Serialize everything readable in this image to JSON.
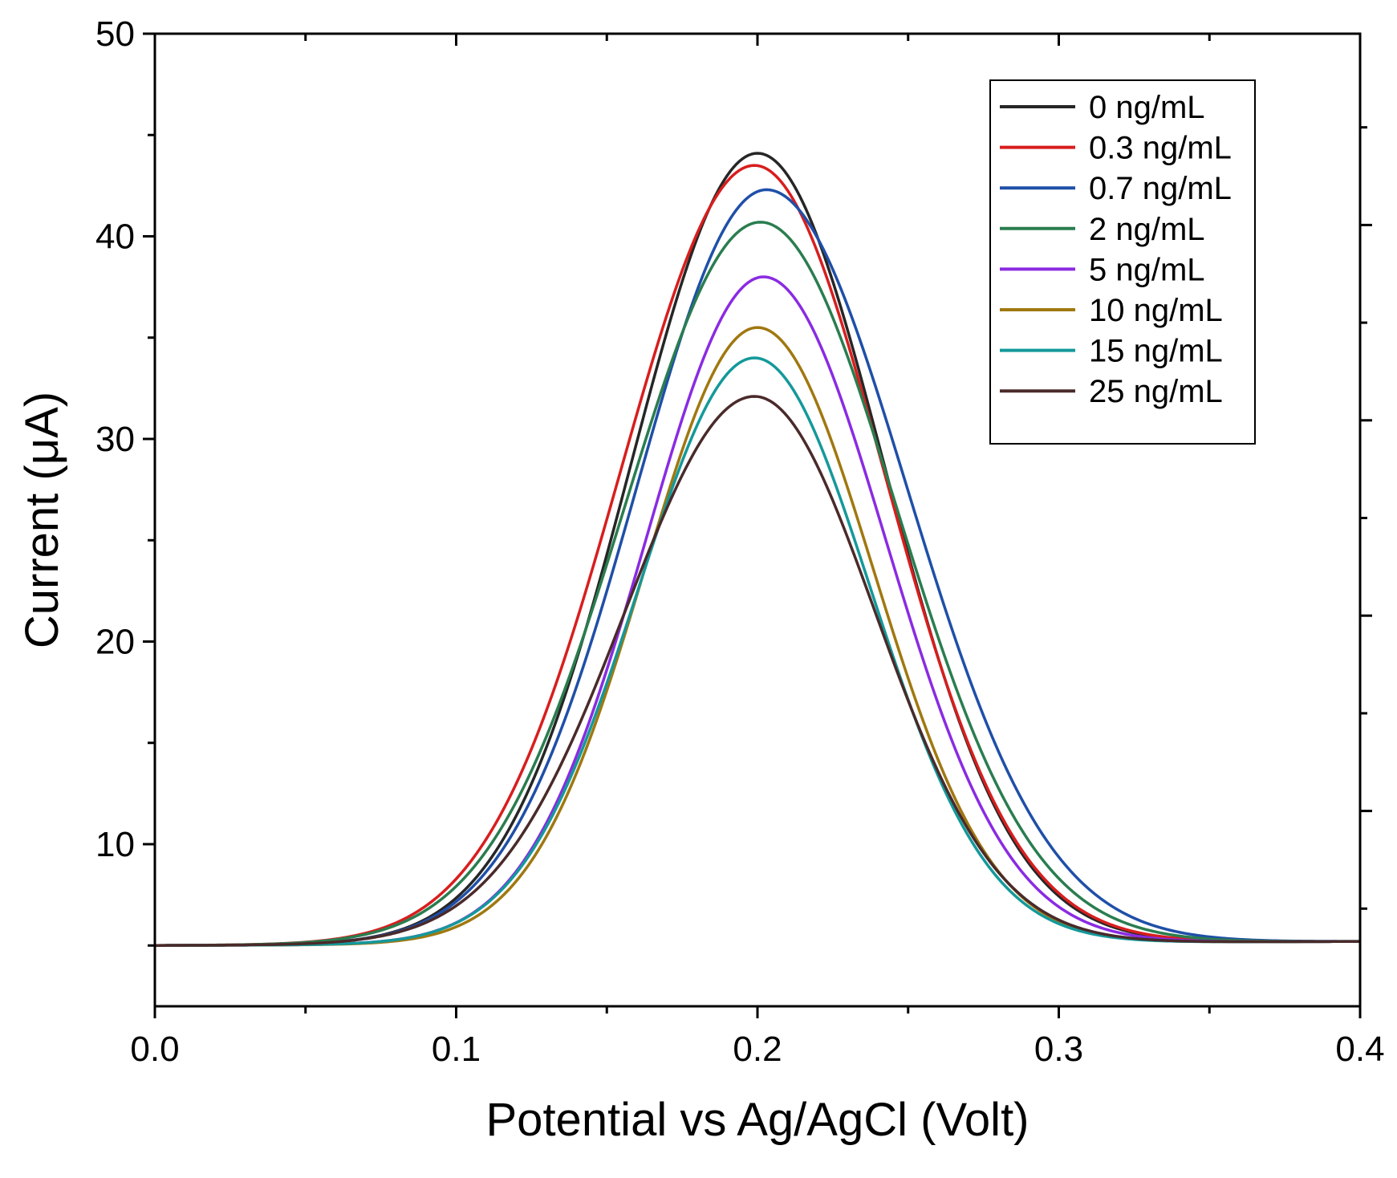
{
  "chart_data": {
    "type": "line",
    "title": "",
    "xlabel": "Potential vs Ag/AgCl (Volt)",
    "ylabel": "Current (μA)",
    "xlim": [
      0.0,
      0.4
    ],
    "ylim": [
      2,
      50
    ],
    "x_ticks": [
      0.0,
      0.1,
      0.2,
      0.3,
      0.4
    ],
    "x_tick_labels": [
      "0.0",
      "0.1",
      "0.2",
      "0.3",
      "0.4"
    ],
    "y_ticks": [
      10,
      20,
      30,
      40,
      50
    ],
    "y_tick_labels": [
      "10",
      "20",
      "30",
      "40",
      "50"
    ],
    "x_minor_step": 0.05,
    "y_minor_step": 5,
    "grid": false,
    "legend_position": "top-right",
    "baseline_start": 5.0,
    "baseline_end": 5.2,
    "series": [
      {
        "name": "0 ng/mL",
        "color": "#262626",
        "peak_x": 0.2,
        "peak_y": 44.1,
        "sigma_left": 0.042,
        "sigma_right": 0.042
      },
      {
        "name": "0.3 ng/mL",
        "color": "#d81e1e",
        "peak_x": 0.199,
        "peak_y": 43.5,
        "sigma_left": 0.0445,
        "sigma_right": 0.043
      },
      {
        "name": "0.7 ng/mL",
        "color": "#1f4fa8",
        "peak_x": 0.203,
        "peak_y": 42.3,
        "sigma_left": 0.043,
        "sigma_right": 0.0465
      },
      {
        "name": "2 ng/mL",
        "color": "#2a7d4f",
        "peak_x": 0.201,
        "peak_y": 40.7,
        "sigma_left": 0.045,
        "sigma_right": 0.045
      },
      {
        "name": "5 ng/mL",
        "color": "#8a2be2",
        "peak_x": 0.202,
        "peak_y": 38.0,
        "sigma_left": 0.039,
        "sigma_right": 0.0405
      },
      {
        "name": "10 ng/mL",
        "color": "#a07810",
        "peak_x": 0.2,
        "peak_y": 35.5,
        "sigma_left": 0.0375,
        "sigma_right": 0.0385
      },
      {
        "name": "15 ng/mL",
        "color": "#14999a",
        "peak_x": 0.199,
        "peak_y": 34.0,
        "sigma_left": 0.0385,
        "sigma_right": 0.0385
      },
      {
        "name": "25 ng/mL",
        "color": "#4a2a2a",
        "peak_x": 0.199,
        "peak_y": 32.1,
        "sigma_left": 0.043,
        "sigma_right": 0.04
      }
    ]
  }
}
